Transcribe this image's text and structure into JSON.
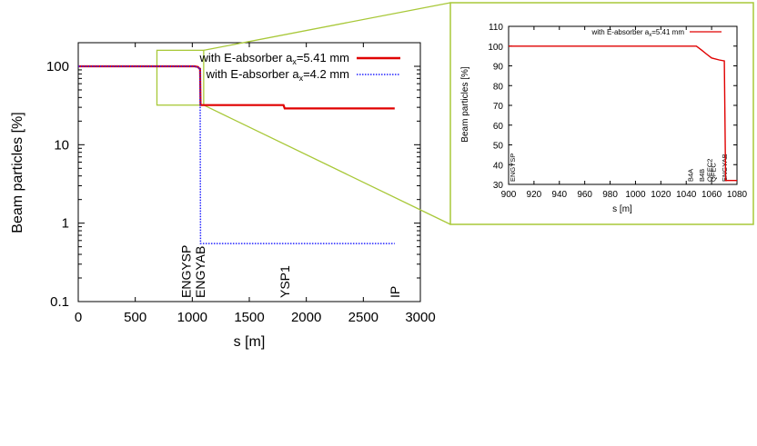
{
  "colors": {
    "red": "#e00000",
    "blue": "#2020ff",
    "zoom": "#a8c838",
    "frame": "#000000"
  },
  "chart_data": [
    {
      "type": "line",
      "panel": "main",
      "scale_y": "log",
      "xlabel": "s [m]",
      "ylabel": "Beam particles [%]",
      "xlim": [
        0,
        3000
      ],
      "ylim": [
        0.1,
        200
      ],
      "x_ticks": [
        0,
        500,
        1000,
        1500,
        2000,
        2500,
        3000
      ],
      "y_ticks": [
        {
          "value": 0.1,
          "label": "0.1"
        },
        {
          "value": 1,
          "label": "1"
        },
        {
          "value": 10,
          "label": "10"
        },
        {
          "value": 100,
          "label": "100"
        }
      ],
      "annotations": [
        {
          "text": "ENGYSP",
          "x": 945
        },
        {
          "text": "ENGYAB",
          "x": 1070
        },
        {
          "text": "YSP1",
          "x": 1810
        },
        {
          "text": "IP",
          "x": 2775
        }
      ],
      "legend": "top-right",
      "series": [
        {
          "name_prefix": "with E-absorber a",
          "name_sub": "x",
          "name_suffix": "=5.41 mm",
          "color": "#e00000",
          "style": "solid",
          "x": [
            0,
            1020,
            1050,
            1060,
            1068,
            1072,
            1800,
            1810,
            2775
          ],
          "y": [
            100,
            100,
            98,
            94,
            93,
            32,
            32,
            29,
            29
          ]
        },
        {
          "name_prefix": "with E-absorber a",
          "name_sub": "x",
          "name_suffix": "=4.2 mm",
          "color": "#2020ff",
          "style": "dotted",
          "x": [
            0,
            1020,
            1060,
            1068,
            1072,
            2775
          ],
          "y": [
            100,
            100,
            95,
            95,
            0.55,
            0.55
          ]
        }
      ]
    },
    {
      "type": "line",
      "panel": "inset",
      "xlabel": "s [m]",
      "ylabel": "Beam particles [%]",
      "xlim": [
        900,
        1080
      ],
      "ylim": [
        30,
        110
      ],
      "x_ticks": [
        900,
        920,
        940,
        960,
        980,
        1000,
        1020,
        1040,
        1060,
        1080
      ],
      "y_ticks": [
        30,
        40,
        50,
        60,
        70,
        80,
        90,
        100,
        110
      ],
      "annotations": [
        {
          "text": "ENGYSP",
          "x": 903
        },
        {
          "text": "B4A",
          "x": 1043
        },
        {
          "text": "B4B",
          "x": 1052
        },
        {
          "text": "QEEC2",
          "x": 1058
        },
        {
          "text": "QFEC",
          "x": 1061
        },
        {
          "text": "ENGYAB",
          "x": 1070
        }
      ],
      "legend": "top-right",
      "series": [
        {
          "name_prefix": "with E-absorber a",
          "name_sub": "x",
          "name_suffix": "=5.41 mm",
          "color": "#e00000",
          "style": "solid",
          "x": [
            900,
            1048,
            1052,
            1056,
            1060,
            1066,
            1070,
            1071,
            1080
          ],
          "y": [
            100,
            100,
            98,
            96,
            94,
            93,
            92.5,
            32,
            32
          ]
        }
      ]
    }
  ]
}
